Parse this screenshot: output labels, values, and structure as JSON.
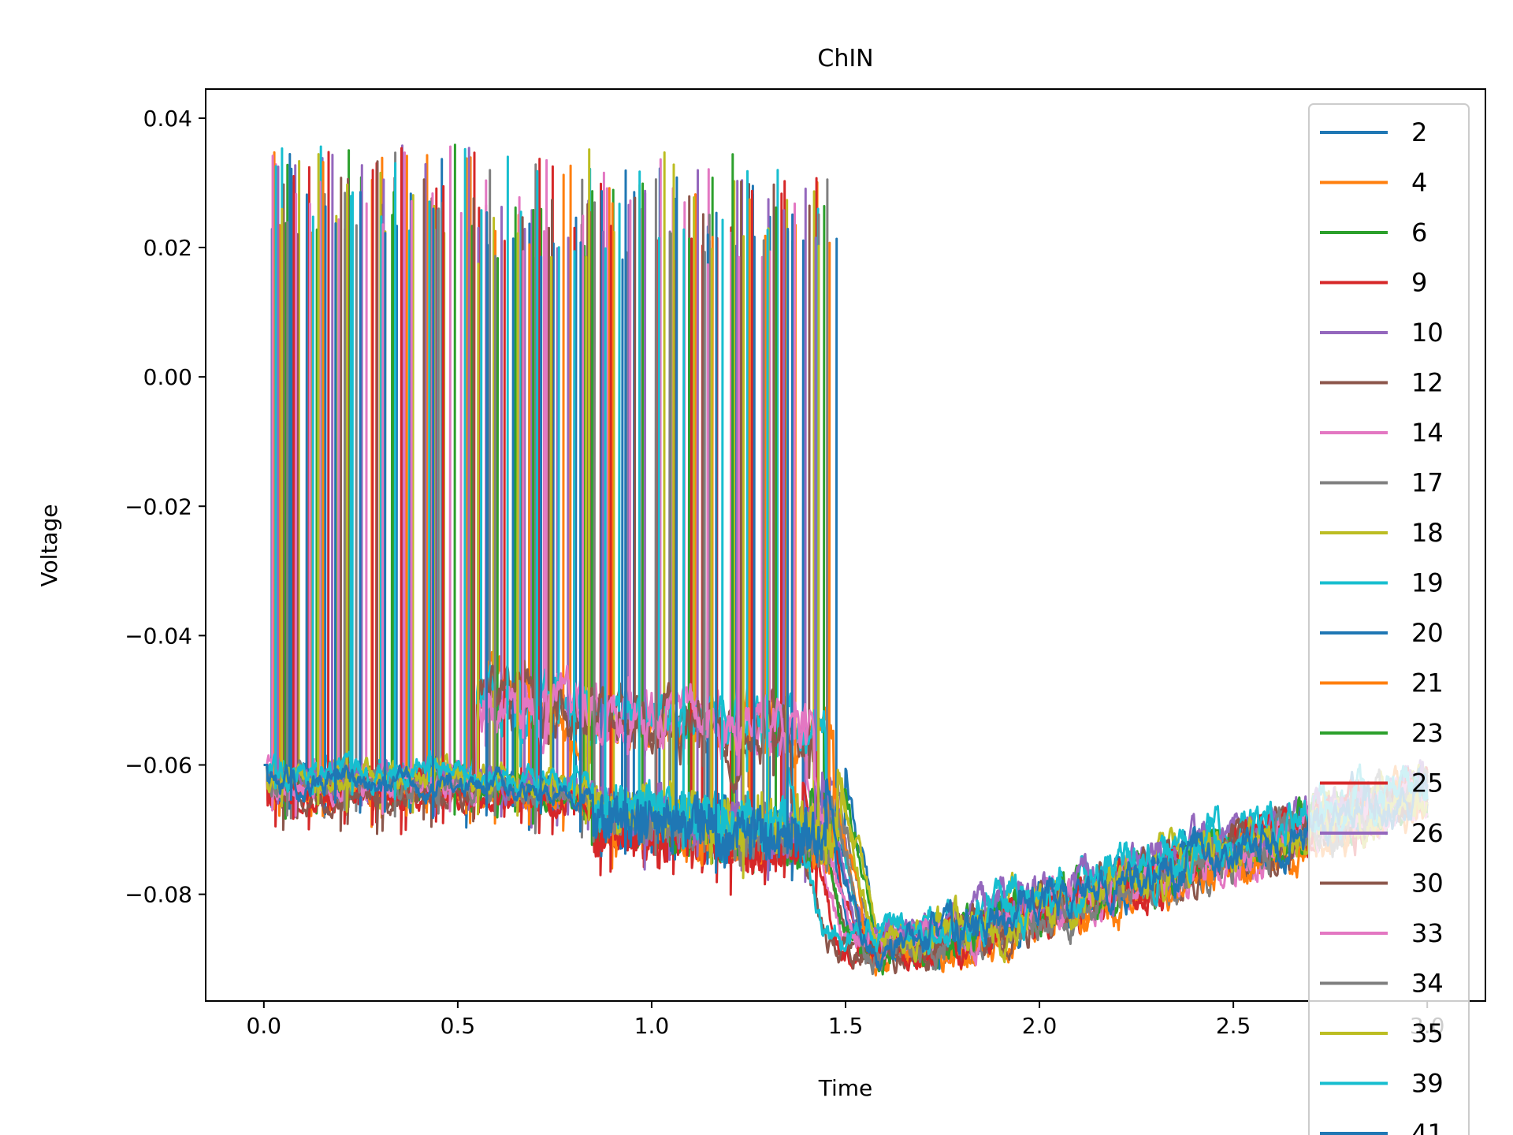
{
  "chart_data": {
    "type": "line",
    "title": "ChIN",
    "xlabel": "Time",
    "ylabel": "Voltage",
    "xlim": [
      -0.15,
      3.15
    ],
    "ylim": [
      -0.0965,
      0.0445
    ],
    "x_ticks": [
      {
        "value": 0.0,
        "label": "0.0"
      },
      {
        "value": 0.5,
        "label": "0.5"
      },
      {
        "value": 1.0,
        "label": "1.0"
      },
      {
        "value": 1.5,
        "label": "1.5"
      },
      {
        "value": 2.0,
        "label": "2.0"
      },
      {
        "value": 2.5,
        "label": "2.5"
      },
      {
        "value": 3.0,
        "label": "3.0"
      }
    ],
    "y_ticks": [
      {
        "value": 0.04,
        "label": "0.04"
      },
      {
        "value": 0.02,
        "label": "0.02"
      },
      {
        "value": 0.0,
        "label": "0.00"
      },
      {
        "value": -0.02,
        "label": "−0.02"
      },
      {
        "value": -0.04,
        "label": "−0.04"
      },
      {
        "value": -0.06,
        "label": "−0.06"
      },
      {
        "value": -0.08,
        "label": "−0.08"
      }
    ],
    "grid": false,
    "legend_position": "upper right (extends beyond axes)",
    "series": [
      {
        "name": "2",
        "color": "#1f77b4",
        "firing": {
          "end": 1.5,
          "rate": 10,
          "phase": 0.01,
          "fade": 0.0
        },
        "resting": {
          "base": -0.062,
          "hyper": -0.089,
          "recovery": -0.063
        }
      },
      {
        "name": "4",
        "color": "#ff7f0e",
        "firing": {
          "end": 1.47,
          "rate": 9,
          "phase": 0.03,
          "fade": 0.4
        },
        "resting": {
          "base": -0.064,
          "hyper": -0.09,
          "recovery": -0.066
        }
      },
      {
        "name": "6",
        "color": "#2ca02c",
        "firing": {
          "end": 1.49,
          "rate": 11,
          "phase": 0.05,
          "fade": 0.2
        },
        "resting": {
          "base": -0.063,
          "hyper": -0.088,
          "recovery": -0.064
        }
      },
      {
        "name": "9",
        "color": "#d62728",
        "firing": {
          "end": 1.44,
          "rate": 10,
          "phase": 0.02,
          "fade": 0.3
        },
        "resting": {
          "base": -0.065,
          "hyper": -0.089,
          "recovery": -0.065
        }
      },
      {
        "name": "10",
        "color": "#9467bd",
        "firing": {
          "end": 1.46,
          "rate": 12,
          "phase": 0.07,
          "fade": 0.1
        },
        "resting": {
          "base": -0.063,
          "hyper": -0.087,
          "recovery": -0.062
        }
      },
      {
        "name": "12",
        "color": "#8c564b",
        "firing": {
          "end": 1.42,
          "rate": 8,
          "phase": 0.04,
          "fade": 0.5
        },
        "resting": {
          "base": -0.064,
          "hyper": -0.088,
          "recovery": -0.064
        }
      },
      {
        "name": "14",
        "color": "#e377c2",
        "firing": {
          "end": 1.4,
          "rate": 13,
          "phase": 0.02,
          "fade": 0.6
        },
        "resting": {
          "base": -0.062,
          "hyper": -0.088,
          "recovery": -0.066
        }
      },
      {
        "name": "17",
        "color": "#7f7f7f",
        "firing": {
          "end": 1.48,
          "rate": 9,
          "phase": 0.06,
          "fade": 0.2
        },
        "resting": {
          "base": -0.063,
          "hyper": -0.089,
          "recovery": -0.065
        }
      },
      {
        "name": "18",
        "color": "#bcbd22",
        "firing": {
          "end": 1.49,
          "rate": 10,
          "phase": 0.08,
          "fade": 0.3
        },
        "resting": {
          "base": -0.062,
          "hyper": -0.086,
          "recovery": -0.064
        }
      },
      {
        "name": "19",
        "color": "#17becf",
        "firing": {
          "end": 1.45,
          "rate": 11,
          "phase": 0.035,
          "fade": 0.4
        },
        "resting": {
          "base": -0.061,
          "hyper": -0.085,
          "recovery": -0.063
        }
      },
      {
        "name": "20",
        "color": "#1f77b4",
        "firing": {
          "end": 1.43,
          "rate": 9,
          "phase": 0.055,
          "fade": 0.2
        },
        "resting": {
          "base": -0.063,
          "hyper": -0.087,
          "recovery": -0.065
        }
      },
      {
        "name": "21",
        "color": "#ff7f0e",
        "firing": {
          "end": 1.47,
          "rate": 10,
          "phase": 0.015,
          "fade": 0.3
        },
        "resting": {
          "base": -0.064,
          "hyper": -0.089,
          "recovery": -0.066
        }
      },
      {
        "name": "23",
        "color": "#2ca02c",
        "firing": {
          "end": 1.41,
          "rate": 8,
          "phase": 0.045,
          "fade": 0.1
        },
        "resting": {
          "base": -0.063,
          "hyper": -0.088,
          "recovery": -0.064
        }
      },
      {
        "name": "25",
        "color": "#d62728",
        "firing": {
          "end": 1.39,
          "rate": 11,
          "phase": 0.065,
          "fade": 0.2
        },
        "resting": {
          "base": -0.064,
          "hyper": -0.088,
          "recovery": -0.063
        }
      },
      {
        "name": "26",
        "color": "#9467bd",
        "firing": {
          "end": 1.44,
          "rate": 9,
          "phase": 0.025,
          "fade": 0.3
        },
        "resting": {
          "base": -0.062,
          "hyper": -0.086,
          "recovery": -0.062
        }
      },
      {
        "name": "30",
        "color": "#8c564b",
        "firing": {
          "end": 1.36,
          "rate": 10,
          "phase": 0.075,
          "fade": 0.4
        },
        "resting": {
          "base": -0.065,
          "hyper": -0.088,
          "recovery": -0.065
        }
      },
      {
        "name": "33",
        "color": "#e377c2",
        "firing": {
          "end": 1.42,
          "rate": 12,
          "phase": 0.012,
          "fade": 0.5
        },
        "resting": {
          "base": -0.063,
          "hyper": -0.087,
          "recovery": -0.066
        }
      },
      {
        "name": "34",
        "color": "#7f7f7f",
        "firing": {
          "end": 1.46,
          "rate": 8,
          "phase": 0.05,
          "fade": 0.1
        },
        "resting": {
          "base": -0.063,
          "hyper": -0.089,
          "recovery": -0.064
        }
      },
      {
        "name": "35",
        "color": "#bcbd22",
        "firing": {
          "end": 1.48,
          "rate": 10,
          "phase": 0.035,
          "fade": 0.2
        },
        "resting": {
          "base": -0.062,
          "hyper": -0.087,
          "recovery": -0.065
        }
      },
      {
        "name": "39",
        "color": "#17becf",
        "firing": {
          "end": 1.35,
          "rate": 11,
          "phase": 0.02,
          "fade": 0.3
        },
        "resting": {
          "base": -0.061,
          "hyper": -0.086,
          "recovery": -0.063
        }
      },
      {
        "name": "41",
        "color": "#1f77b4",
        "firing": {
          "end": 1.45,
          "rate": 9,
          "phase": 0.06,
          "fade": 0.2
        },
        "resting": {
          "base": -0.063,
          "hyper": -0.088,
          "recovery": -0.064
        }
      }
    ]
  }
}
